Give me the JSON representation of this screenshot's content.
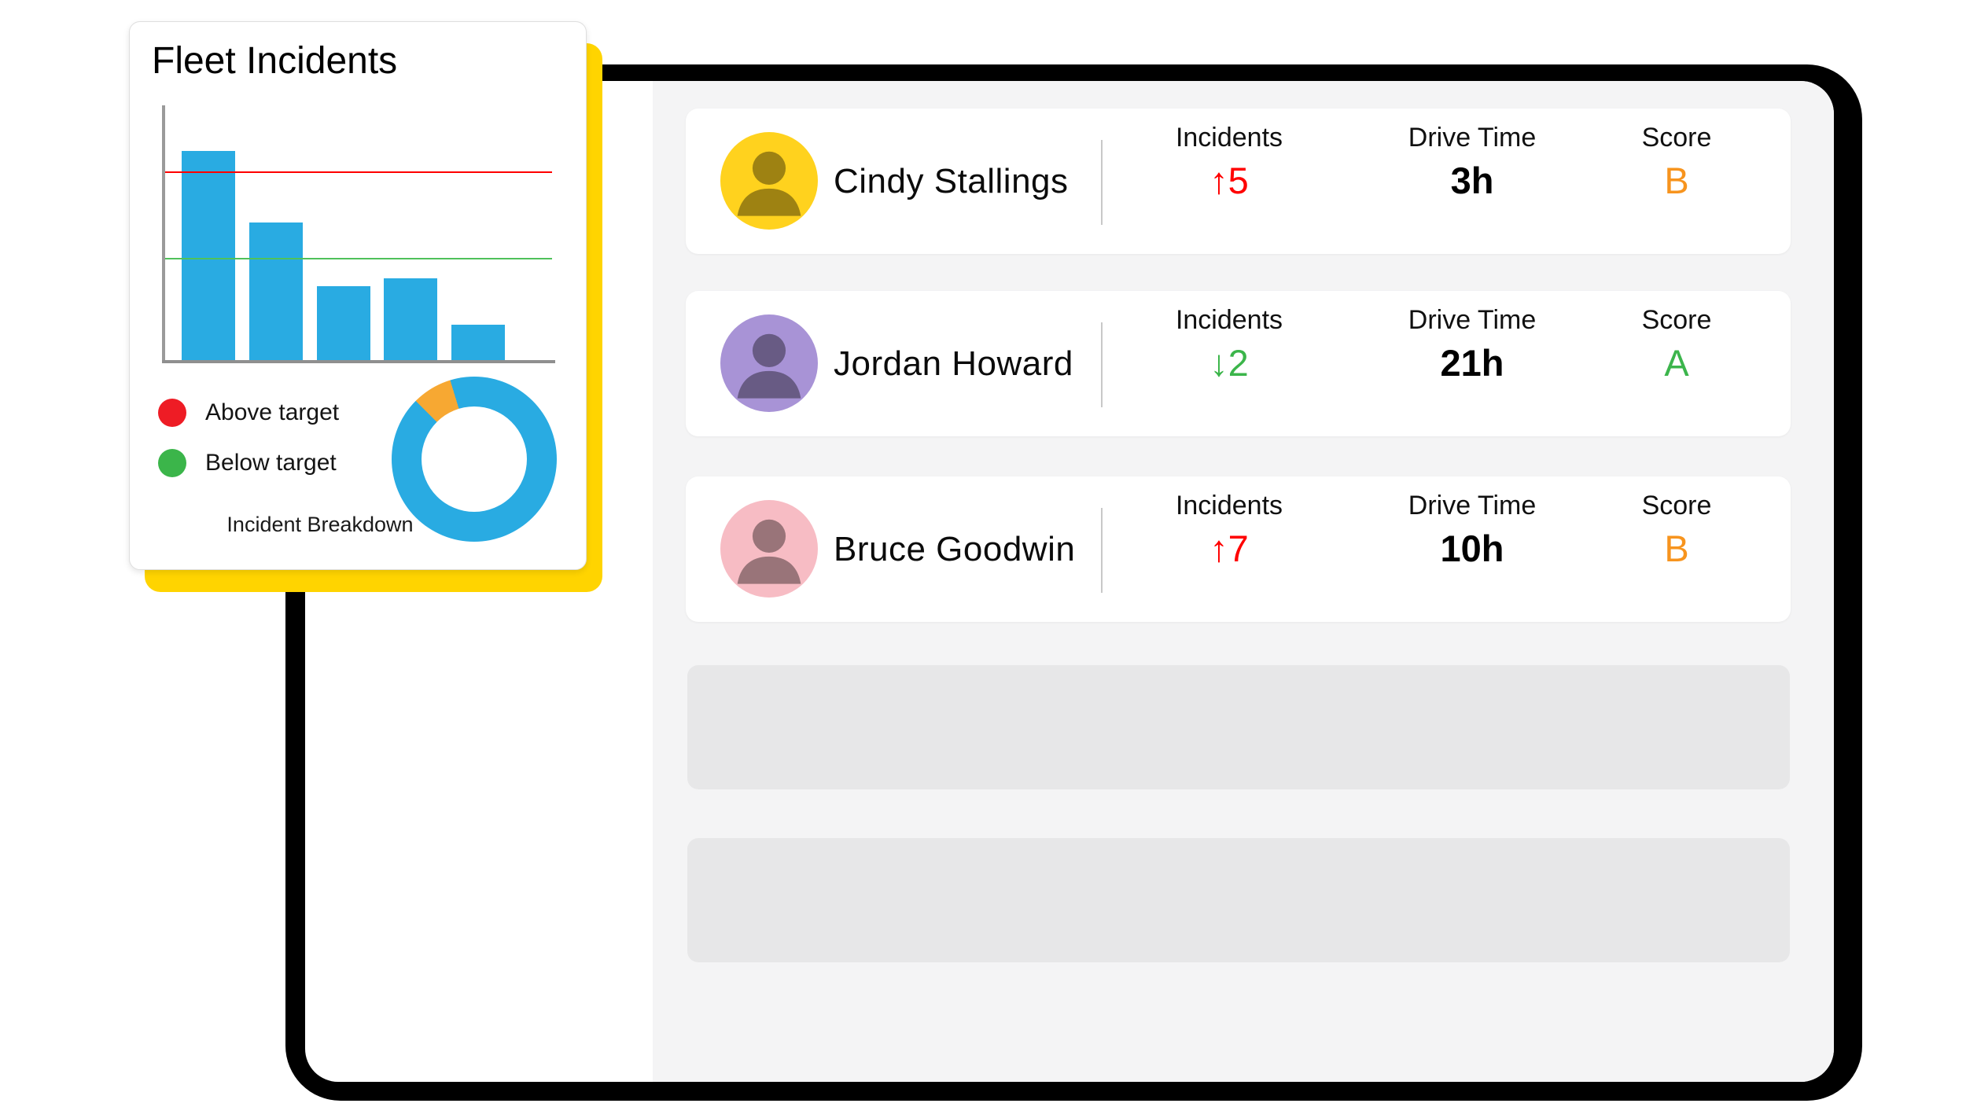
{
  "colors": {
    "frame_black": "#000000",
    "panel_bg": "#f4f4f5",
    "placeholder_gray": "#e7e7e8",
    "card_yellow": "#ffd400",
    "bar_blue": "#29abe2",
    "target_red": "#ff0000",
    "target_green": "#4fc15a",
    "legend_red": "#ee1c25",
    "legend_green": "#3bb54a",
    "incident_up_red": "#ff0000",
    "incident_down_green": "#3bb54a",
    "score_orange": "#f7941e",
    "score_green": "#3cb54c"
  },
  "icons": {
    "arrow_up": "↑",
    "arrow_down": "↓"
  },
  "fleet_card": {
    "title": "Fleet Incidents",
    "legend": [
      {
        "label": "Above target",
        "color": "#ee1c25"
      },
      {
        "label": "Below target",
        "color": "#3bb54a"
      }
    ],
    "donut_label": "Incident Breakdown"
  },
  "chart_data": [
    {
      "type": "bar",
      "title": "Fleet Incidents",
      "categories": [
        "",
        "",
        "",
        "",
        ""
      ],
      "values": [
        82,
        54,
        29,
        32,
        14
      ],
      "value_scale": "percent of plot height (no numeric axis labels shown)",
      "reference_lines": [
        {
          "name": "Above target",
          "value": 74,
          "color": "#ff0000"
        },
        {
          "name": "Below target",
          "value": 40,
          "color": "#4fc15a"
        }
      ],
      "xlabel": "",
      "ylabel": "",
      "grid": false,
      "legend_position": "below-left"
    },
    {
      "type": "pie",
      "title": "Incident Breakdown",
      "donut": true,
      "slices": [
        {
          "label": "blue segment",
          "value": 92.2,
          "color": "#29abe2"
        },
        {
          "label": "amber segment",
          "value": 7.8,
          "color": "#f7a832"
        }
      ],
      "amber_start_deg_from_top": -45
    }
  ],
  "drivers_panel": {
    "columns": [
      "Incidents",
      "Drive Time",
      "Score"
    ],
    "rows": [
      {
        "name": "Cindy Stallings",
        "incidents": "5",
        "trend": "up",
        "drive_time": "3h",
        "score": "B",
        "score_color": "#f7941e",
        "avatar_bg": "#ffd21e"
      },
      {
        "name": "Jordan Howard",
        "incidents": "2",
        "trend": "down",
        "drive_time": "21h",
        "score": "A",
        "score_color": "#3cb54c",
        "avatar_bg": "#a893d6"
      },
      {
        "name": "Bruce Goodwin",
        "incidents": "7",
        "trend": "up",
        "drive_time": "10h",
        "score": "B",
        "score_color": "#f7941e",
        "avatar_bg": "#f7bcc4"
      }
    ],
    "placeholder_rows": 2
  }
}
